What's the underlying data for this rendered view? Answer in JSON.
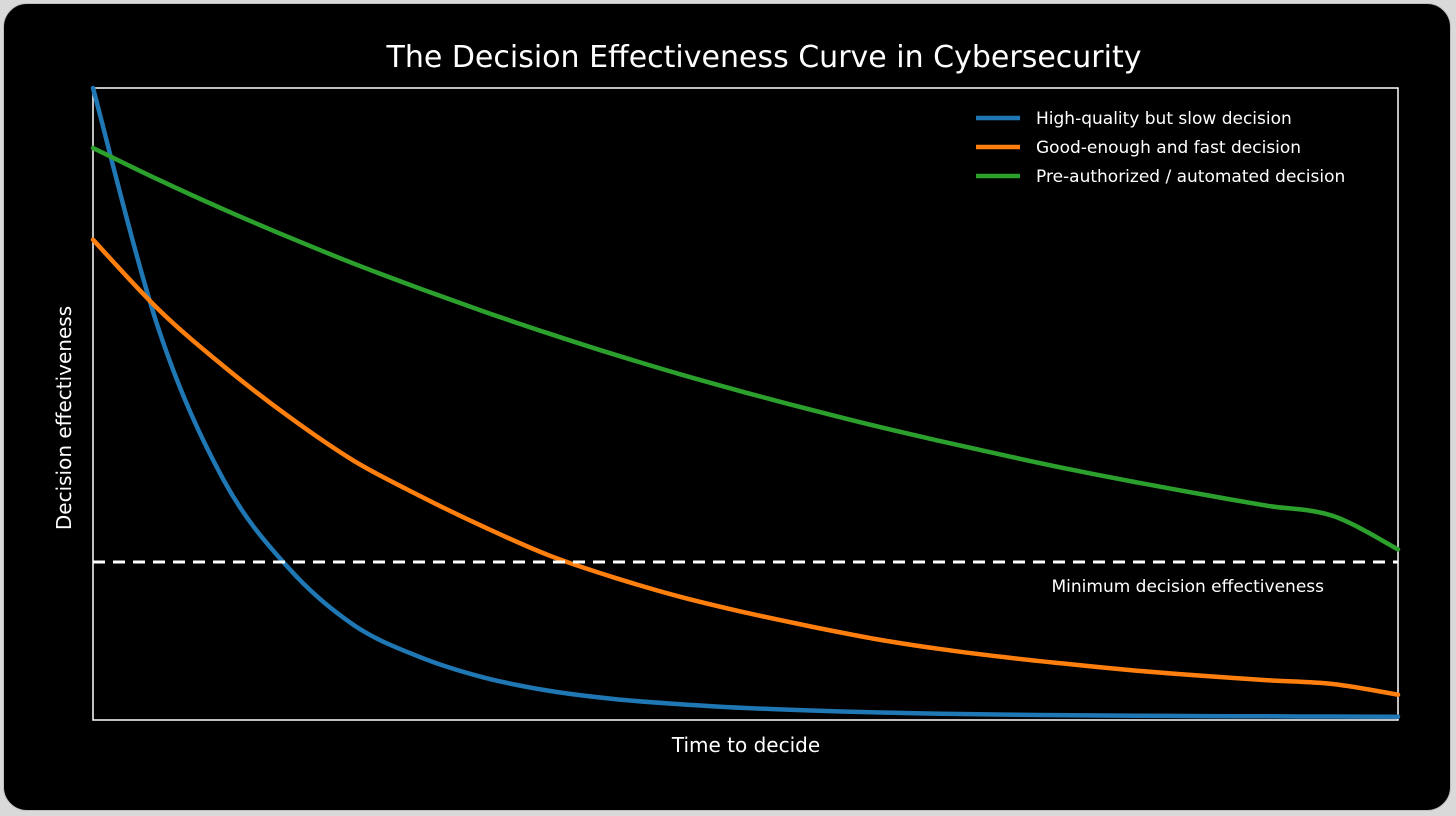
{
  "chart_data": {
    "type": "line",
    "title": "The Decision Effectiveness Curve in Cybersecurity",
    "xlabel": "Time to decide",
    "ylabel": "Decision effectiveness",
    "xlim": [
      0,
      10
    ],
    "ylim": [
      0,
      1
    ],
    "grid": false,
    "legend_position": "top-right",
    "x": [
      0,
      0.5,
      1,
      1.5,
      2,
      2.5,
      3,
      3.5,
      4,
      4.5,
      5,
      5.5,
      6,
      6.5,
      7,
      7.5,
      8,
      8.5,
      9,
      9.5,
      10
    ],
    "series": [
      {
        "name": "High-quality but slow decision",
        "color": "#1f77b4",
        "values": [
          1.0,
          0.62,
          0.38,
          0.24,
          0.15,
          0.1,
          0.067,
          0.046,
          0.033,
          0.025,
          0.019,
          0.015,
          0.012,
          0.01,
          0.0085,
          0.0075,
          0.0068,
          0.0062,
          0.0058,
          0.0055,
          0.0053
        ]
      },
      {
        "name": "Good-enough and fast decision",
        "color": "#ff7f0e",
        "values": [
          0.76,
          0.65,
          0.56,
          0.48,
          0.41,
          0.355,
          0.305,
          0.26,
          0.225,
          0.195,
          0.17,
          0.148,
          0.128,
          0.112,
          0.099,
          0.088,
          0.078,
          0.07,
          0.063,
          0.057,
          0.04
        ]
      },
      {
        "name": "Pre-authorized / automated decision",
        "color": "#2ca02c",
        "values": [
          0.905,
          0.855,
          0.808,
          0.764,
          0.722,
          0.683,
          0.646,
          0.611,
          0.578,
          0.547,
          0.518,
          0.491,
          0.465,
          0.441,
          0.418,
          0.396,
          0.376,
          0.357,
          0.339,
          0.323,
          0.27
        ]
      }
    ],
    "threshold": {
      "label": "Minimum decision effectiveness",
      "value": 0.25,
      "color": "#ffffff",
      "style": "dashed"
    }
  }
}
